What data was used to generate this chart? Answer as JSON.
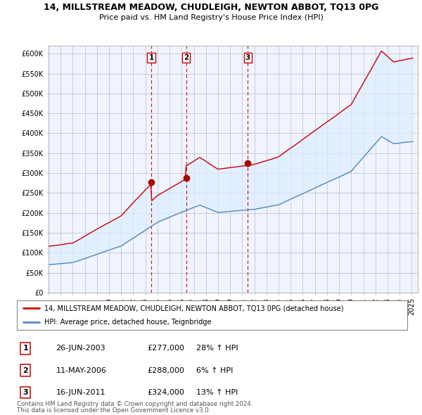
{
  "title": "14, MILLSTREAM MEADOW, CHUDLEIGH, NEWTON ABBOT, TQ13 0PG",
  "subtitle": "Price paid vs. HM Land Registry's House Price Index (HPI)",
  "ylabel_vals": [
    0,
    50000,
    100000,
    150000,
    200000,
    250000,
    300000,
    350000,
    400000,
    450000,
    500000,
    550000,
    600000
  ],
  "ylabel_labels": [
    "£0",
    "£50K",
    "£100K",
    "£150K",
    "£200K",
    "£250K",
    "£300K",
    "£350K",
    "£400K",
    "£450K",
    "£500K",
    "£550K",
    "£600K"
  ],
  "ylim": [
    0,
    620000
  ],
  "xlim_start": 1995.0,
  "xlim_end": 2025.5,
  "line_color_red": "#cc0000",
  "line_color_blue": "#5588bb",
  "fill_color": "#ddeeff",
  "marker_color": "#aa0000",
  "vline_color": "#cc0000",
  "bg_color": "#f0f4ff",
  "transactions": [
    {
      "label": "1",
      "year": 2003.49,
      "price": 277000,
      "pct": "28%",
      "date": "26-JUN-2003"
    },
    {
      "label": "2",
      "year": 2006.36,
      "price": 288000,
      "pct": "6%",
      "date": "11-MAY-2006"
    },
    {
      "label": "3",
      "year": 2011.46,
      "price": 324000,
      "pct": "13%",
      "date": "16-JUN-2011"
    }
  ],
  "legend_line1": "14, MILLSTREAM MEADOW, CHUDLEIGH, NEWTON ABBOT, TQ13 0PG (detached house)",
  "legend_line2": "HPI: Average price, detached house, Teignbridge",
  "footnote1": "Contains HM Land Registry data © Crown copyright and database right 2024.",
  "footnote2": "This data is licensed under the Open Government Licence v3.0."
}
